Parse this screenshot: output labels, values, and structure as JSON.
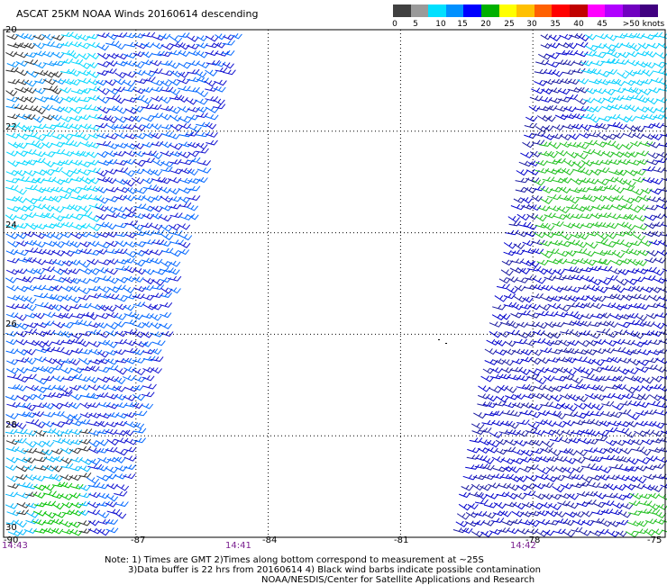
{
  "title": "ASCAT 25KM NOAA Winds 20160614 descending",
  "colorbar": {
    "colors": [
      "#404040",
      "#9a9a9a",
      "#00e0ff",
      "#0090ff",
      "#0000ff",
      "#00b000",
      "#ffff00",
      "#ffc000",
      "#ff6000",
      "#ff0000",
      "#c00000",
      "#ff00ff",
      "#b000ff",
      "#7000c0",
      "#400080"
    ],
    "labels": [
      "0",
      "5",
      "10",
      "15",
      "20",
      "25",
      "30",
      "35",
      "40",
      "45",
      ">50 knots"
    ]
  },
  "map": {
    "lat_labels": [
      "20",
      "22",
      "24",
      "26",
      "28",
      "30"
    ],
    "lon_labels": [
      "-90",
      "-87",
      "-84",
      "-81",
      "-78",
      "-75"
    ],
    "time_labels": [
      "14:43",
      "14:41",
      "14:42"
    ],
    "lon_range": [
      -90,
      -75
    ],
    "lat_range": [
      20,
      30
    ]
  },
  "notes": {
    "line1": "Note: 1) Times are GMT 2)Times along bottom correspond to measurement at ~25S",
    "line2": "3)Data buffer is 22 hrs from 20160614 4) Black wind barbs indicate possible contamination",
    "line3": "NOAA/NESDIS/Center for Satellite Applications and Research"
  }
}
